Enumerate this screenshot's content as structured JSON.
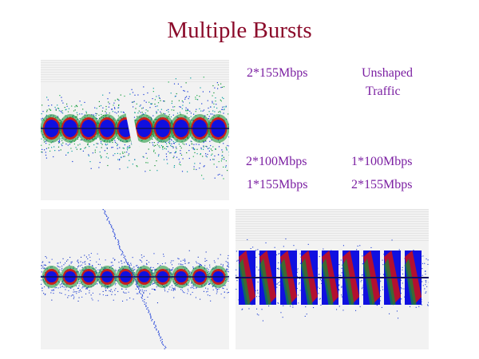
{
  "slide": {
    "title": "Multiple Bursts"
  },
  "labels": {
    "top_left_caption": "2*155Mbps",
    "top_right_caption_line1": "Unshaped",
    "top_right_caption_line2": "Traffic",
    "bottom_left_caption_line1": "2*100Mbps",
    "bottom_left_caption_line2": "1*155Mbps",
    "bottom_right_caption_line1": "1*100Mbps",
    "bottom_right_caption_line2": "2*155Mbps"
  },
  "colors": {
    "title": "#8b0a2a",
    "labels": "#7b1fa2",
    "plot_background": "#f2f2f2",
    "burst_core": "#1010e0",
    "burst_hot": "#d01010",
    "burst_mid": "#109030",
    "burst_scatter": "#1a3cd8"
  },
  "plots": [
    {
      "id": "plot-top-left",
      "burst_count": 10,
      "style": "dense"
    },
    {
      "id": "plot-bottom-left",
      "burst_count": 10,
      "style": "sparse"
    },
    {
      "id": "plot-bottom-right",
      "burst_count": 9,
      "style": "striped"
    }
  ]
}
